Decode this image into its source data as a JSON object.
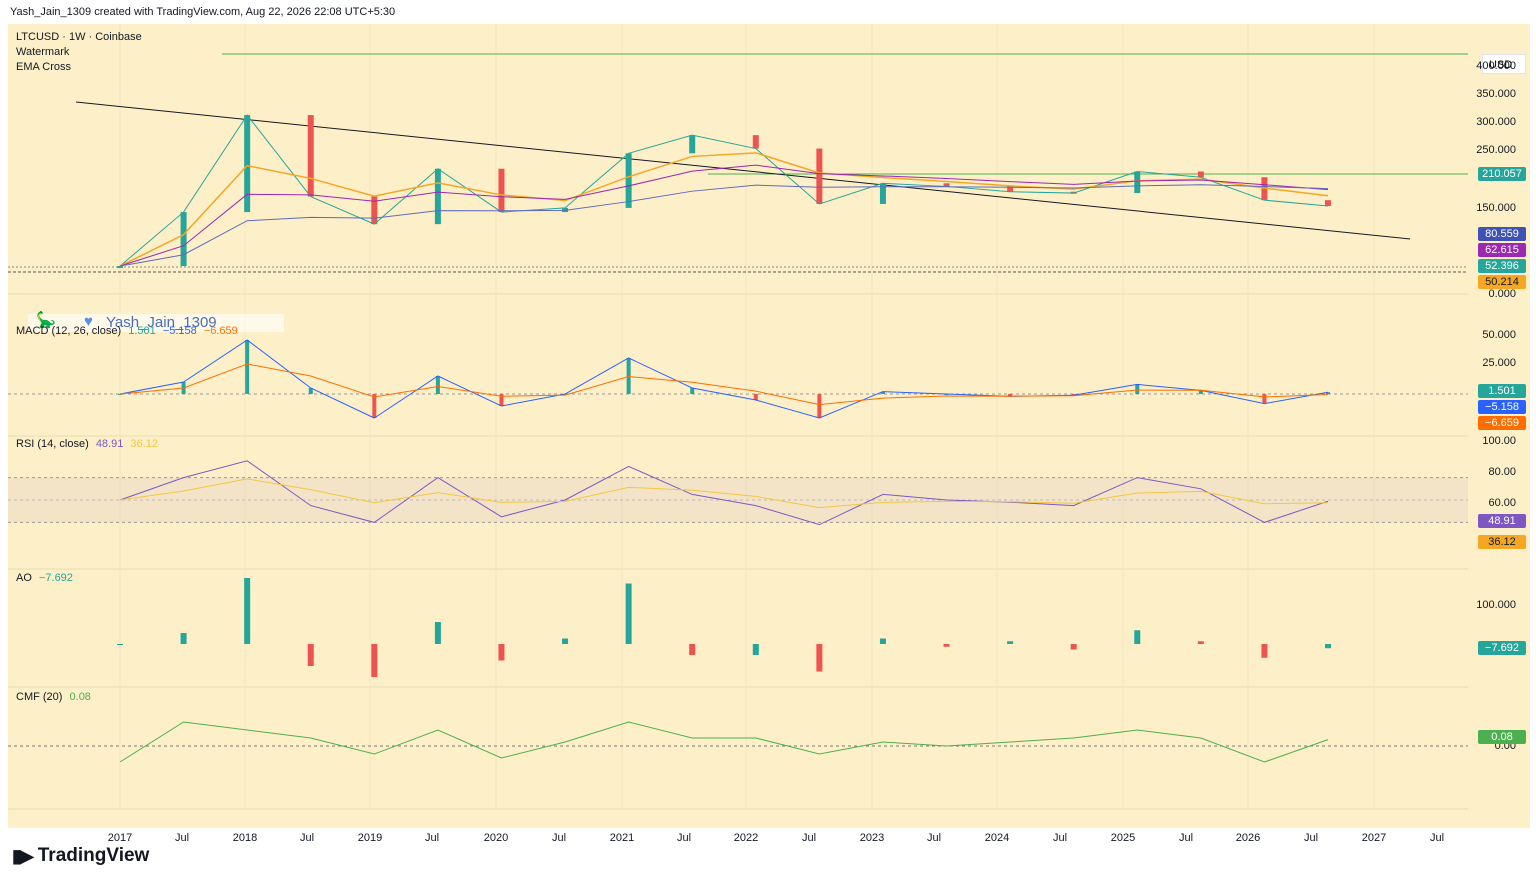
{
  "caption": "Yash_Jain_1309 created with TradingView.com, Aug 22, 2026 22:08 UTC+5:30",
  "symbol_line": "LTCUSD · 1W · Coinbase",
  "indicators_list": [
    "Watermark",
    "EMA Cross"
  ],
  "currency": "USD",
  "watermark_text": "Yash_Jain_1309",
  "footer": "TradingView",
  "colors": {
    "bg": "#fdf0c9",
    "up": "#26a69a",
    "down": "#ef5350",
    "ema_fast": "#f5a623",
    "ema_slow": "#9c27b0",
    "ma_blue": "#5c6bc0",
    "rsi": "#7e57c2",
    "cmf": "#4caf50"
  },
  "price_axis": [
    "400.000",
    "350.000",
    "300.000",
    "250.000",
    "150.000",
    "0.000"
  ],
  "price_badges": [
    {
      "value": "210.057",
      "color": "#26a69a"
    },
    {
      "value": "80.559",
      "color": "#3f51b5"
    },
    {
      "value": "62.615",
      "color": "#9c27b0"
    },
    {
      "value": "52.396",
      "color": "#26a69a"
    },
    {
      "value": "50.214",
      "color": "#f5a623"
    }
  ],
  "macd": {
    "label": "MACD (12, 26, close)",
    "values": [
      "1.501",
      "−5.158",
      "−6.659"
    ],
    "axis": [
      "50.000",
      "25.000"
    ],
    "badges": [
      {
        "value": "1.501",
        "color": "#26a69a"
      },
      {
        "value": "−5.158",
        "color": "#2962ff"
      },
      {
        "value": "−6.659",
        "color": "#ff6d00"
      }
    ]
  },
  "rsi": {
    "label": "RSI (14, close)",
    "values": [
      "48.91",
      "36.12"
    ],
    "axis": [
      "100.00",
      "80.00",
      "60.00"
    ],
    "badges": [
      {
        "value": "48.91",
        "color": "#7e57c2"
      },
      {
        "value": "36.12",
        "color": "#f5a623"
      }
    ]
  },
  "ao": {
    "label": "AO",
    "values": [
      "−7.692"
    ],
    "axis": [
      "100.000"
    ],
    "badges": [
      {
        "value": "−7.692",
        "color": "#26a69a"
      }
    ]
  },
  "cmf": {
    "label": "CMF (20)",
    "values": [
      "0.08"
    ],
    "axis": [
      "0.00"
    ],
    "badges": [
      {
        "value": "0.08",
        "color": "#4caf50"
      }
    ]
  },
  "time_axis": [
    "2017",
    "Jul",
    "2018",
    "Jul",
    "2019",
    "Jul",
    "2020",
    "Jul",
    "2021",
    "Jul",
    "2022",
    "Jul",
    "2023",
    "Jul",
    "2024",
    "Jul",
    "2025",
    "Jul",
    "2026",
    "Jul",
    "2027",
    "Jul"
  ],
  "chart_data": {
    "type": "line",
    "x": [
      "2017",
      "Jul",
      "2018",
      "Jul",
      "2019",
      "Jul",
      "2020",
      "Jul",
      "2021",
      "Jul",
      "2022",
      "Jul",
      "2023",
      "Jul",
      "2024",
      "Jul",
      "2025",
      "Jul",
      "2026",
      "Jul"
    ],
    "series": [
      {
        "name": "LTCUSD",
        "values": [
          4,
          45,
          230,
          65,
          32,
          110,
          45,
          50,
          140,
          180,
          150,
          55,
          85,
          80,
          72,
          70,
          105,
          95,
          60,
          52.4
        ]
      }
    ],
    "macd": [
      0,
      10,
      45,
      5,
      -20,
      15,
      -10,
      0,
      30,
      5,
      -5,
      -20,
      2,
      0,
      -2,
      -1,
      8,
      3,
      -8,
      1.5
    ],
    "rsi": [
      50,
      70,
      85,
      45,
      30,
      70,
      35,
      50,
      80,
      55,
      45,
      28,
      55,
      50,
      48,
      45,
      70,
      60,
      30,
      48.91
    ],
    "ao": [
      0,
      20,
      120,
      -40,
      -60,
      40,
      -30,
      10,
      110,
      -20,
      -20,
      -50,
      10,
      -5,
      5,
      -10,
      25,
      5,
      -25,
      -7.692
    ],
    "cmf": [
      -0.2,
      0.3,
      0.2,
      0.1,
      -0.1,
      0.2,
      -0.15,
      0.05,
      0.3,
      0.1,
      0.1,
      -0.1,
      0.05,
      0.0,
      0.05,
      0.1,
      0.2,
      0.1,
      -0.2,
      0.08
    ]
  }
}
